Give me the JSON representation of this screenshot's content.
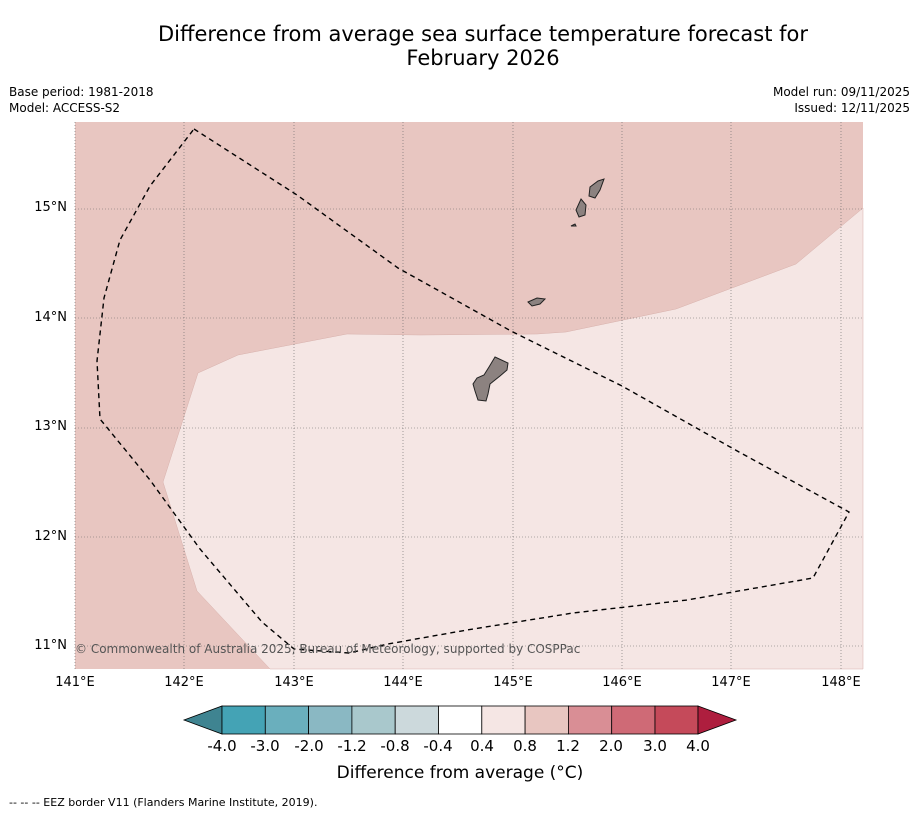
{
  "title_line1": "Difference from average sea surface temperature forecast for",
  "title_line2": "February 2026",
  "meta_left": [
    "Base period: 1981-2018",
    "Model: ACCESS-S2"
  ],
  "meta_right": [
    "Model run: 09/11/2025",
    "Issued: 12/11/2025"
  ],
  "copyright": "© Commonwealth of Australia 2025, Bureau of Meteorology, supported by COSPPac",
  "lat_labels": [
    "15°N",
    "14°N",
    "13°N",
    "12°N",
    "11°N"
  ],
  "lon_labels": [
    "141°E",
    "142°E",
    "143°E",
    "144°E",
    "145°E",
    "146°E",
    "147°E",
    "148°E"
  ],
  "colorbar": {
    "title": "Difference from average (°C)",
    "tick_labels": [
      "-4.0",
      "-3.0",
      "-2.0",
      "-1.2",
      "-0.8",
      "-0.4",
      "0.4",
      "0.8",
      "1.2",
      "2.0",
      "3.0",
      "4.0"
    ],
    "colors": [
      "#44a3b5",
      "#6aafbd",
      "#8ab8c3",
      "#a9c8cc",
      "#ccd9dc",
      "#ffffff",
      "#f5e6e4",
      "#e8c6c1",
      "#d98e95",
      "#cf6a76",
      "#c54a5a"
    ],
    "under_color": "#3f8491",
    "over_color": "#ae1e3e"
  },
  "fills": {
    "band_0_4_to_0_8": "#f5e6e4",
    "band_0_8_to_1_2": "#e8c6c1",
    "land": "#8c8280"
  },
  "legend_footer": "--  --  -- EEZ border V11 (Flanders Marine Institute, 2019)."
}
